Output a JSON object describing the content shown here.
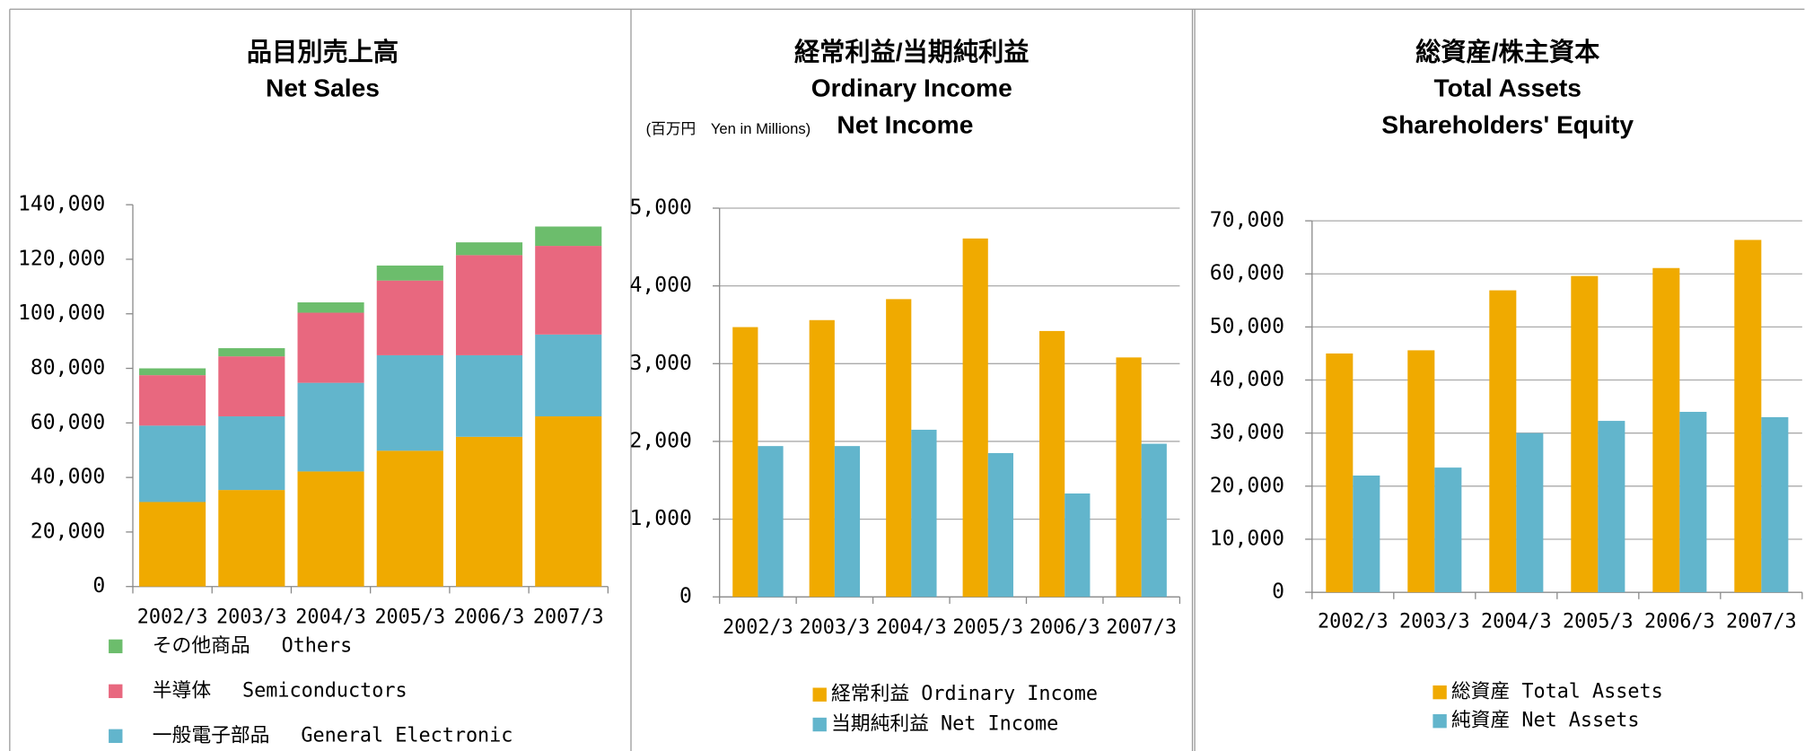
{
  "chart_data": [
    {
      "type": "stacked_bar",
      "title": "品目別売上高",
      "subtitle": "Net Sales",
      "categories": [
        "2002/3",
        "2003/3",
        "2004/3",
        "2005/3",
        "2006/3",
        "2007/3"
      ],
      "series": [
        {
          "color": "#f0aa00",
          "values": [
            31000,
            35400,
            42200,
            49800,
            54900,
            62400
          ]
        },
        {
          "name": "一般電子部品　 General Electronic",
          "color": "#62b5cc",
          "values": [
            28000,
            27000,
            32500,
            35000,
            29900,
            30000
          ]
        },
        {
          "name": "半導体　 Semiconductors",
          "color": "#e8687f",
          "values": [
            18500,
            22000,
            25700,
            27400,
            36700,
            32500
          ]
        },
        {
          "name": "その他商品　 Others",
          "color": "#6cbd6c",
          "values": [
            2500,
            3000,
            3800,
            5500,
            4700,
            7100
          ]
        }
      ],
      "ylim": [
        0,
        140000
      ],
      "yticks": [
        0,
        {
          "value": 20000,
          "label": "20,000"
        },
        {
          "value": 40000,
          "label": "40,000"
        },
        {
          "value": 60000,
          "label": "60,000"
        },
        {
          "value": 80000,
          "label": "80,000"
        },
        {
          "value": 100000,
          "label": "100,000"
        },
        {
          "value": 120000,
          "label": "120,000"
        },
        {
          "value": 140000,
          "label": "140,000"
        }
      ],
      "grid": false
    },
    {
      "type": "bar",
      "title": "経常利益/当期純利益",
      "subtitle": "Ordinary Income",
      "subtitle2": "Net Income",
      "unit_label": "(百万円　Yen in Millions)",
      "categories": [
        "2002/3",
        "2003/3",
        "2004/3",
        "2005/3",
        "2006/3",
        "2007/3"
      ],
      "series": [
        {
          "name": "経常利益 Ordinary Income",
          "color": "#f0aa00",
          "values": [
            3470,
            3560,
            3830,
            4610,
            3420,
            3080
          ]
        },
        {
          "name": "当期純利益 Net Income",
          "color": "#62b5cc",
          "values": [
            1940,
            1940,
            2150,
            1850,
            1330,
            1970
          ]
        }
      ],
      "ylim": [
        0,
        5000
      ],
      "yticks": [
        0,
        {
          "value": 1000,
          "label": "1,000"
        },
        {
          "value": 2000,
          "label": "2,000"
        },
        {
          "value": 3000,
          "label": "3,000"
        },
        {
          "value": 4000,
          "label": "4,000"
        },
        {
          "value": 5000,
          "label": "5,000"
        }
      ],
      "grid": true
    },
    {
      "type": "bar",
      "title": "総資産/株主資本",
      "subtitle": "Total Assets",
      "subtitle2": "Shareholders' Equity",
      "categories": [
        "2002/3",
        "2003/3",
        "2004/3",
        "2005/3",
        "2006/3",
        "2007/3"
      ],
      "series": [
        {
          "name": "総資産 Total Assets",
          "color": "#f0aa00",
          "values": [
            45000,
            45600,
            56900,
            59600,
            61100,
            66400
          ]
        },
        {
          "name": "純資産 Net Assets",
          "color": "#62b5cc",
          "values": [
            22000,
            23500,
            30000,
            32300,
            34000,
            33000
          ]
        }
      ],
      "ylim": [
        0,
        70000
      ],
      "yticks": [
        0,
        {
          "value": 10000,
          "label": "10,000"
        },
        {
          "value": 20000,
          "label": "20,000"
        },
        {
          "value": 30000,
          "label": "30,000"
        },
        {
          "value": 40000,
          "label": "40,000"
        },
        {
          "value": 50000,
          "label": "50,000"
        },
        {
          "value": 60000,
          "label": "60,000"
        },
        {
          "value": 70000,
          "label": "70,000"
        }
      ],
      "grid": true
    }
  ]
}
